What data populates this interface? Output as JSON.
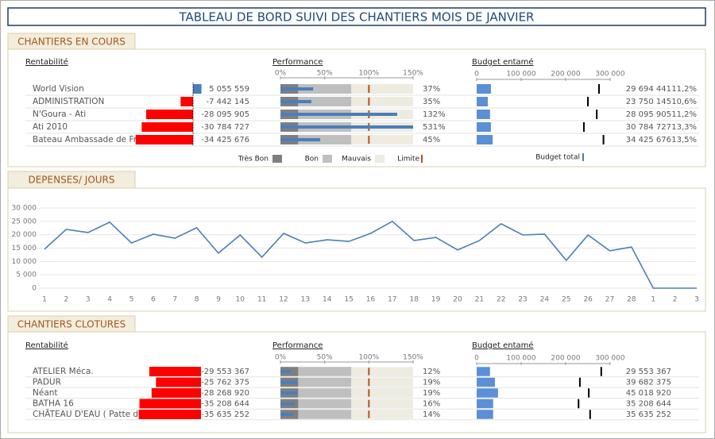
{
  "title": "TABLEAU DE BORD SUIVI DES CHANTIERS MOIS DE JANVIER",
  "sections": [
    {
      "title": "CHANTIERS EN COURS",
      "headers": {
        "rentabilite": "Rentabilité",
        "performance": "Performance",
        "budget": "Budget entamé"
      },
      "perf_lim": [
        0,
        150
      ],
      "perf_ticks": [
        {
          "value": 0,
          "label": "0%"
        },
        {
          "value": 50,
          "label": "50%"
        },
        {
          "value": 100,
          "label": "100%"
        },
        {
          "value": 150,
          "label": "150%"
        }
      ],
      "budget_lim": [
        0,
        300000
      ],
      "budget_ticks": [
        0,
        {
          "value": 100000,
          "label": "100 000"
        },
        {
          "value": 200000,
          "label": "200 000"
        },
        {
          "value": 300000,
          "label": "300 000"
        }
      ],
      "bands": {
        "tres_bon": 20,
        "bon": 80,
        "mauvais": 150,
        "limite": 100
      },
      "legend": {
        "tres_bon": "Très Bon",
        "bon": "Bon",
        "mauvais": "Mauvais",
        "limite": "Limite",
        "budget_total": "Budget total"
      },
      "rows": [
        {
          "name": "World Vision",
          "rentabilite": 5055559,
          "rentabilite_label": "5 055 559",
          "performance": 37,
          "performance_label": "37%",
          "budget_entame": 32000,
          "budget_total": 275000,
          "budget_text": "29 694 441",
          "budget_pct": "11,2%"
        },
        {
          "name": "ADMINISTRATION",
          "rentabilite": -7442145,
          "rentabilite_label": "-7 442 145",
          "performance": 35,
          "performance_label": "35%",
          "budget_entame": 25000,
          "budget_total": 250000,
          "budget_text": "23 750 145",
          "budget_pct": "10,6%"
        },
        {
          "name": "N'Goura - Ati",
          "rentabilite": -28095905,
          "rentabilite_label": "-28 095 905",
          "performance": 132,
          "performance_label": "132%",
          "budget_entame": 30000,
          "budget_total": 270000,
          "budget_text": "28 095 905",
          "budget_pct": "11,2%"
        },
        {
          "name": "Ati 2010",
          "rentabilite": -30784727,
          "rentabilite_label": "-30 784 727",
          "performance": 531,
          "performance_label": "531%",
          "budget_entame": 32000,
          "budget_total": 241000,
          "budget_text": "30 784 727",
          "budget_pct": "13,3%"
        },
        {
          "name": "Bateau Ambassade de Fra",
          "rentabilite": -34425676,
          "rentabilite_label": "-34 425 676",
          "performance": 45,
          "performance_label": "45%",
          "budget_entame": 36000,
          "budget_total": 285000,
          "budget_text": "34 425 676",
          "budget_pct": "13,5%"
        }
      ]
    },
    {
      "title": "CHANTIERS CLOTURES",
      "headers": {
        "rentabilite": "Rentabilité",
        "performance": "Performance",
        "budget": "Budget entamé"
      },
      "perf_lim": [
        0,
        150
      ],
      "perf_ticks": [
        {
          "value": 0,
          "label": "0%"
        },
        {
          "value": 50,
          "label": "50%"
        },
        {
          "value": 100,
          "label": "100%"
        },
        {
          "value": 150,
          "label": "150%"
        }
      ],
      "budget_lim": [
        0,
        300000
      ],
      "budget_ticks": [
        0,
        {
          "value": 100000,
          "label": "100 000"
        },
        {
          "value": 200000,
          "label": "200 000"
        },
        {
          "value": 300000,
          "label": "300 000"
        }
      ],
      "bands": {
        "tres_bon": 20,
        "bon": 80,
        "mauvais": 150,
        "limite": 100
      },
      "rows": [
        {
          "name": "ATELIER Méca.",
          "rentabilite": -29553367,
          "rentabilite_label": "-29 553 367",
          "performance": 12,
          "performance_label": "12%",
          "budget_entame": 30000,
          "budget_total": 280000,
          "budget_text": "29 553 367"
        },
        {
          "name": "PADUR",
          "rentabilite": -25762375,
          "rentabilite_label": "-25 762 375",
          "performance": 19,
          "performance_label": "19%",
          "budget_entame": 41000,
          "budget_total": 232000,
          "budget_text": "39 682 375"
        },
        {
          "name": "Néant",
          "rentabilite": -28268920,
          "rentabilite_label": "-28 268 920",
          "performance": 19,
          "performance_label": "19%",
          "budget_entame": 48000,
          "budget_total": 252000,
          "budget_text": "45 018 920"
        },
        {
          "name": "BATHA 16",
          "rentabilite": -35208644,
          "rentabilite_label": "-35 208 644",
          "performance": 16,
          "performance_label": "16%",
          "budget_entame": 37000,
          "budget_total": 229000,
          "budget_text": "35 208 644"
        },
        {
          "name": "CHÂTEAU D'EAU ( Patte d'",
          "rentabilite": -35635252,
          "rentabilite_label": "-35 635 252",
          "performance": 14,
          "performance_label": "14%",
          "budget_entame": 37000,
          "budget_total": 255000,
          "budget_text": "35 635 252"
        }
      ]
    }
  ],
  "chart_data": {
    "type": "line",
    "title": "DEPENSES/ JOURS",
    "categories": [
      "1",
      "2",
      "3",
      "4",
      "5",
      "6",
      "7",
      "8",
      "9",
      "10",
      "11",
      "12",
      "13",
      "14",
      "15",
      "16",
      "17",
      "18",
      "19",
      "20",
      "21",
      "22",
      "23",
      "24",
      "25",
      "26",
      "27",
      "28",
      "1",
      "2",
      "3"
    ],
    "series": [
      {
        "color": "#4a7ebb",
        "values": [
          14600,
          22000,
          20800,
          24700,
          16900,
          20200,
          18700,
          22600,
          13100,
          19900,
          11600,
          20500,
          16900,
          18100,
          17500,
          20500,
          25000,
          17800,
          19000,
          14300,
          17800,
          24100,
          19900,
          20200,
          10400,
          19900,
          14000,
          15400,
          0,
          0,
          0
        ]
      }
    ],
    "ylim": [
      0,
      30000
    ],
    "yticks": [
      0,
      {
        "value": 5000,
        "label": "5 000"
      },
      {
        "value": 10000,
        "label": "10 000"
      },
      {
        "value": 15000,
        "label": "15 000"
      },
      {
        "value": 20000,
        "label": "20 000"
      },
      {
        "value": 25000,
        "label": "25 000"
      },
      {
        "value": 30000,
        "label": "30 000"
      }
    ],
    "grid": true
  }
}
